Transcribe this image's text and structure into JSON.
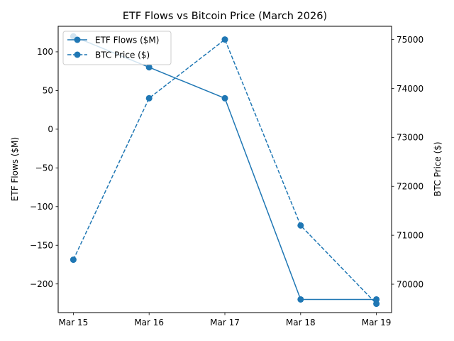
{
  "chart_data": {
    "type": "line",
    "title": "ETF Flows vs Bitcoin Price (March 2026)",
    "categories": [
      "Mar 15",
      "Mar 16",
      "Mar 17",
      "Mar 18",
      "Mar 19"
    ],
    "xlabel": "",
    "ylabel": "ETF Flows ($M)",
    "ylabel_right": "BTC Price ($)",
    "ylim": [
      -237,
      133
    ],
    "ylim_right": [
      69420,
      75270
    ],
    "yticks": [
      -200,
      -150,
      -100,
      -50,
      0,
      50,
      100
    ],
    "yticks_right": [
      70000,
      71000,
      72000,
      73000,
      74000,
      75000
    ],
    "ytick_labels": [
      "−200",
      "−150",
      "−100",
      "−50",
      "0",
      "50",
      "100"
    ],
    "ytick_labels_right": [
      "70000",
      "71000",
      "72000",
      "73000",
      "74000",
      "75000"
    ],
    "legend_position": "upper-left",
    "grid": false,
    "series": [
      {
        "name": "ETF Flows ($M)",
        "axis": "left",
        "style": "solid",
        "color": "#1f77b4",
        "values": [
          120,
          80,
          40,
          -220,
          -220
        ]
      },
      {
        "name": "BTC Price ($)",
        "axis": "right",
        "style": "dashed",
        "color": "#1f77b4",
        "values": [
          70500,
          73800,
          75000,
          71200,
          69600
        ]
      }
    ]
  }
}
